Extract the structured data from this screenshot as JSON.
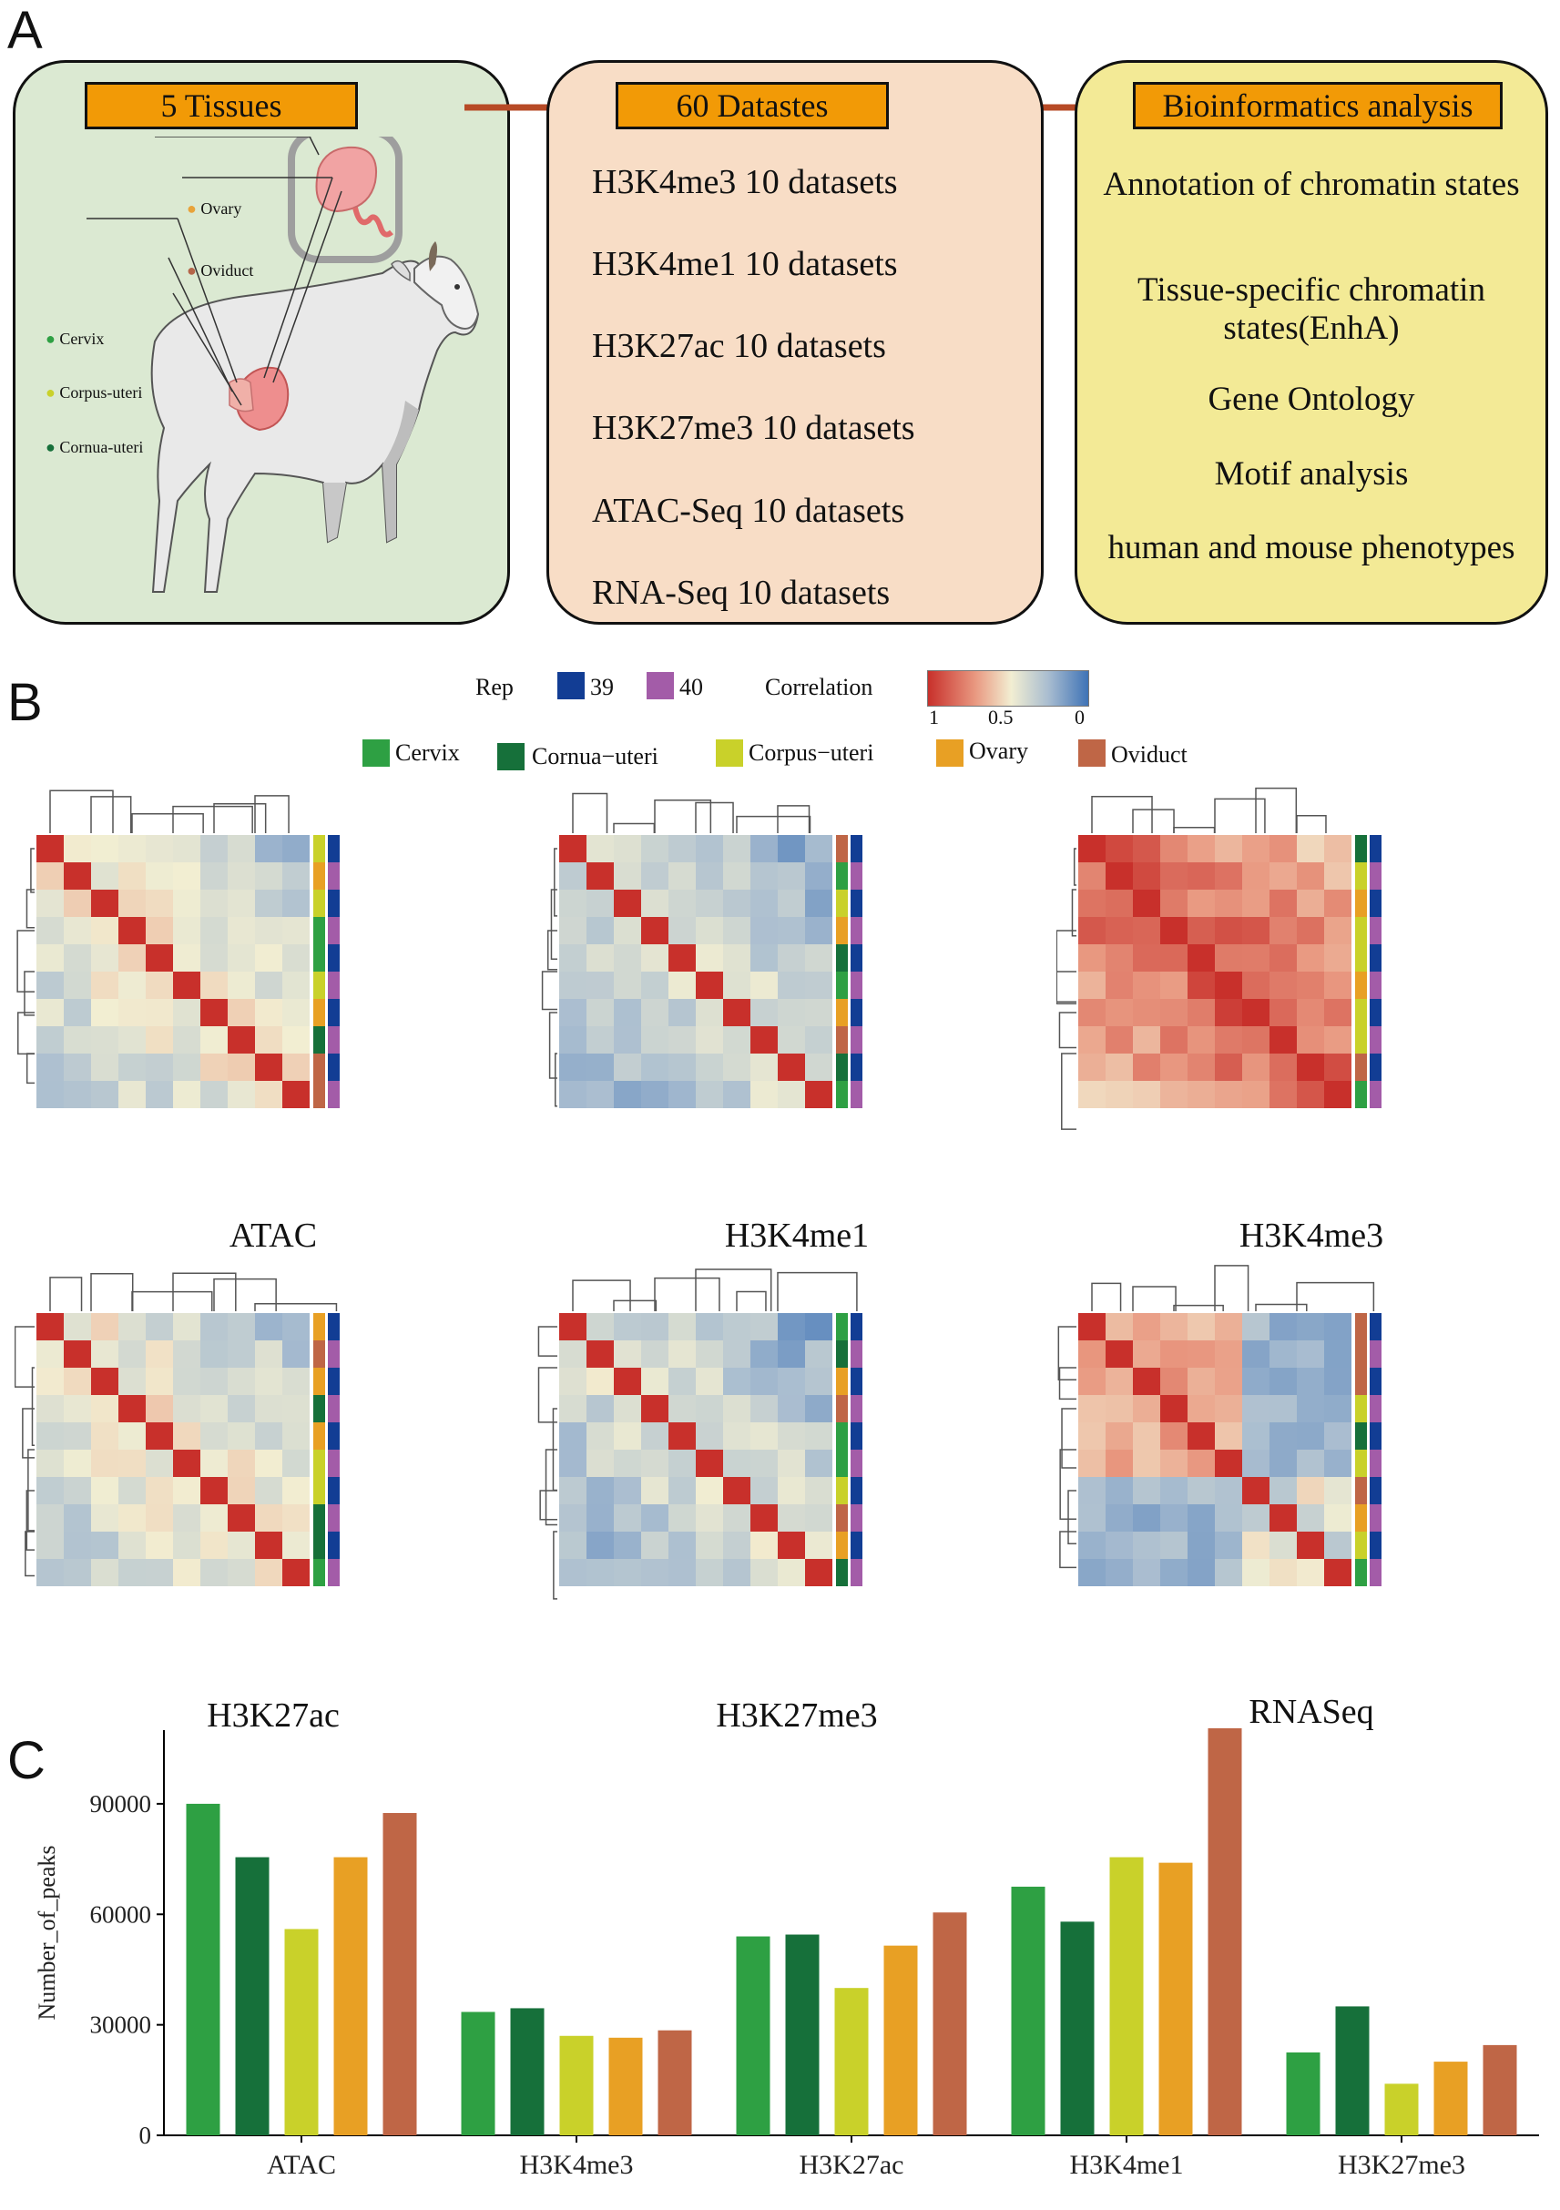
{
  "panels": {
    "a": "A",
    "b": "B",
    "c": "C"
  },
  "panelA": {
    "box1_title": "5 Tissues",
    "box2_title": "60 Datastes",
    "box3_title": "Bioinformatics analysis",
    "tissues": [
      {
        "name": "Ovary",
        "color": "#e8a33a"
      },
      {
        "name": "Oviduct",
        "color": "#b5654a"
      },
      {
        "name": "Cervix",
        "color": "#2ea043"
      },
      {
        "name": "Corpus-uteri",
        "color": "#c9d12a"
      },
      {
        "name": "Cornua-uteri",
        "color": "#16703a"
      }
    ],
    "datasets": [
      "H3K4me3 10 datasets",
      "H3K4me1 10 datasets",
      "H3K27ac 10 datasets",
      "H3K27me3 10 datasets",
      "ATAC-Seq 10 datasets",
      "RNA-Seq 10 datasets"
    ],
    "analyses": [
      "Annotation of chromatin states",
      "Tissue-specific chromatin states(EnhA)",
      "Gene Ontology",
      "Motif analysis",
      "human and mouse phenotypes"
    ]
  },
  "panelB": {
    "rep_label": "Rep",
    "rep_items": [
      {
        "label": "39",
        "color": "#123d94"
      },
      {
        "label": "40",
        "color": "#a35ca8"
      }
    ],
    "correlation_label": "Correlation",
    "correlation_ticks": [
      "1",
      "0.5",
      "0"
    ],
    "tissue_legend": [
      {
        "label": "Cervix",
        "color": "#2ea043"
      },
      {
        "label": "Cornua−uteri",
        "color": "#16703a"
      },
      {
        "label": "Corpus−uteri",
        "color": "#c9d12a"
      },
      {
        "label": "Ovary",
        "color": "#e8a024"
      },
      {
        "label": "Oviduct",
        "color": "#bf6646"
      }
    ],
    "heatmaps": [
      {
        "title": "ATAC",
        "level": 0.55
      },
      {
        "title": "H3K4me1",
        "level": 0.45
      },
      {
        "title": "H3K4me3",
        "level": 0.9
      },
      {
        "title": "H3K27ac",
        "level": 0.55
      },
      {
        "title": "H3K27me3",
        "level": 0.45
      },
      {
        "title": "RNASeq",
        "level": 0.5
      }
    ]
  },
  "chart_data": {
    "type": "bar",
    "categories": [
      "ATAC",
      "H3K4me3",
      "H3K27ac",
      "H3K4me1",
      "H3K27me3"
    ],
    "series": [
      {
        "name": "Cervix",
        "color": "#2ea043",
        "values": [
          90000,
          33500,
          54000,
          67500,
          22500
        ]
      },
      {
        "name": "Cornua-uteri",
        "color": "#16703a",
        "values": [
          75500,
          34500,
          54500,
          58000,
          35000
        ]
      },
      {
        "name": "Corpus-uteri",
        "color": "#c9d12a",
        "values": [
          56000,
          27000,
          40000,
          75500,
          14000
        ]
      },
      {
        "name": "Ovary",
        "color": "#e8a024",
        "values": [
          75500,
          26500,
          51500,
          74000,
          20000
        ]
      },
      {
        "name": "Oviduct",
        "color": "#bf6646",
        "values": [
          87500,
          28500,
          60500,
          110500,
          24500
        ]
      }
    ],
    "title": "",
    "xlabel": "",
    "ylabel": "Number_of_peaks",
    "ylim": [
      0,
      110000
    ],
    "yticks": [
      0,
      30000,
      60000,
      90000
    ]
  }
}
